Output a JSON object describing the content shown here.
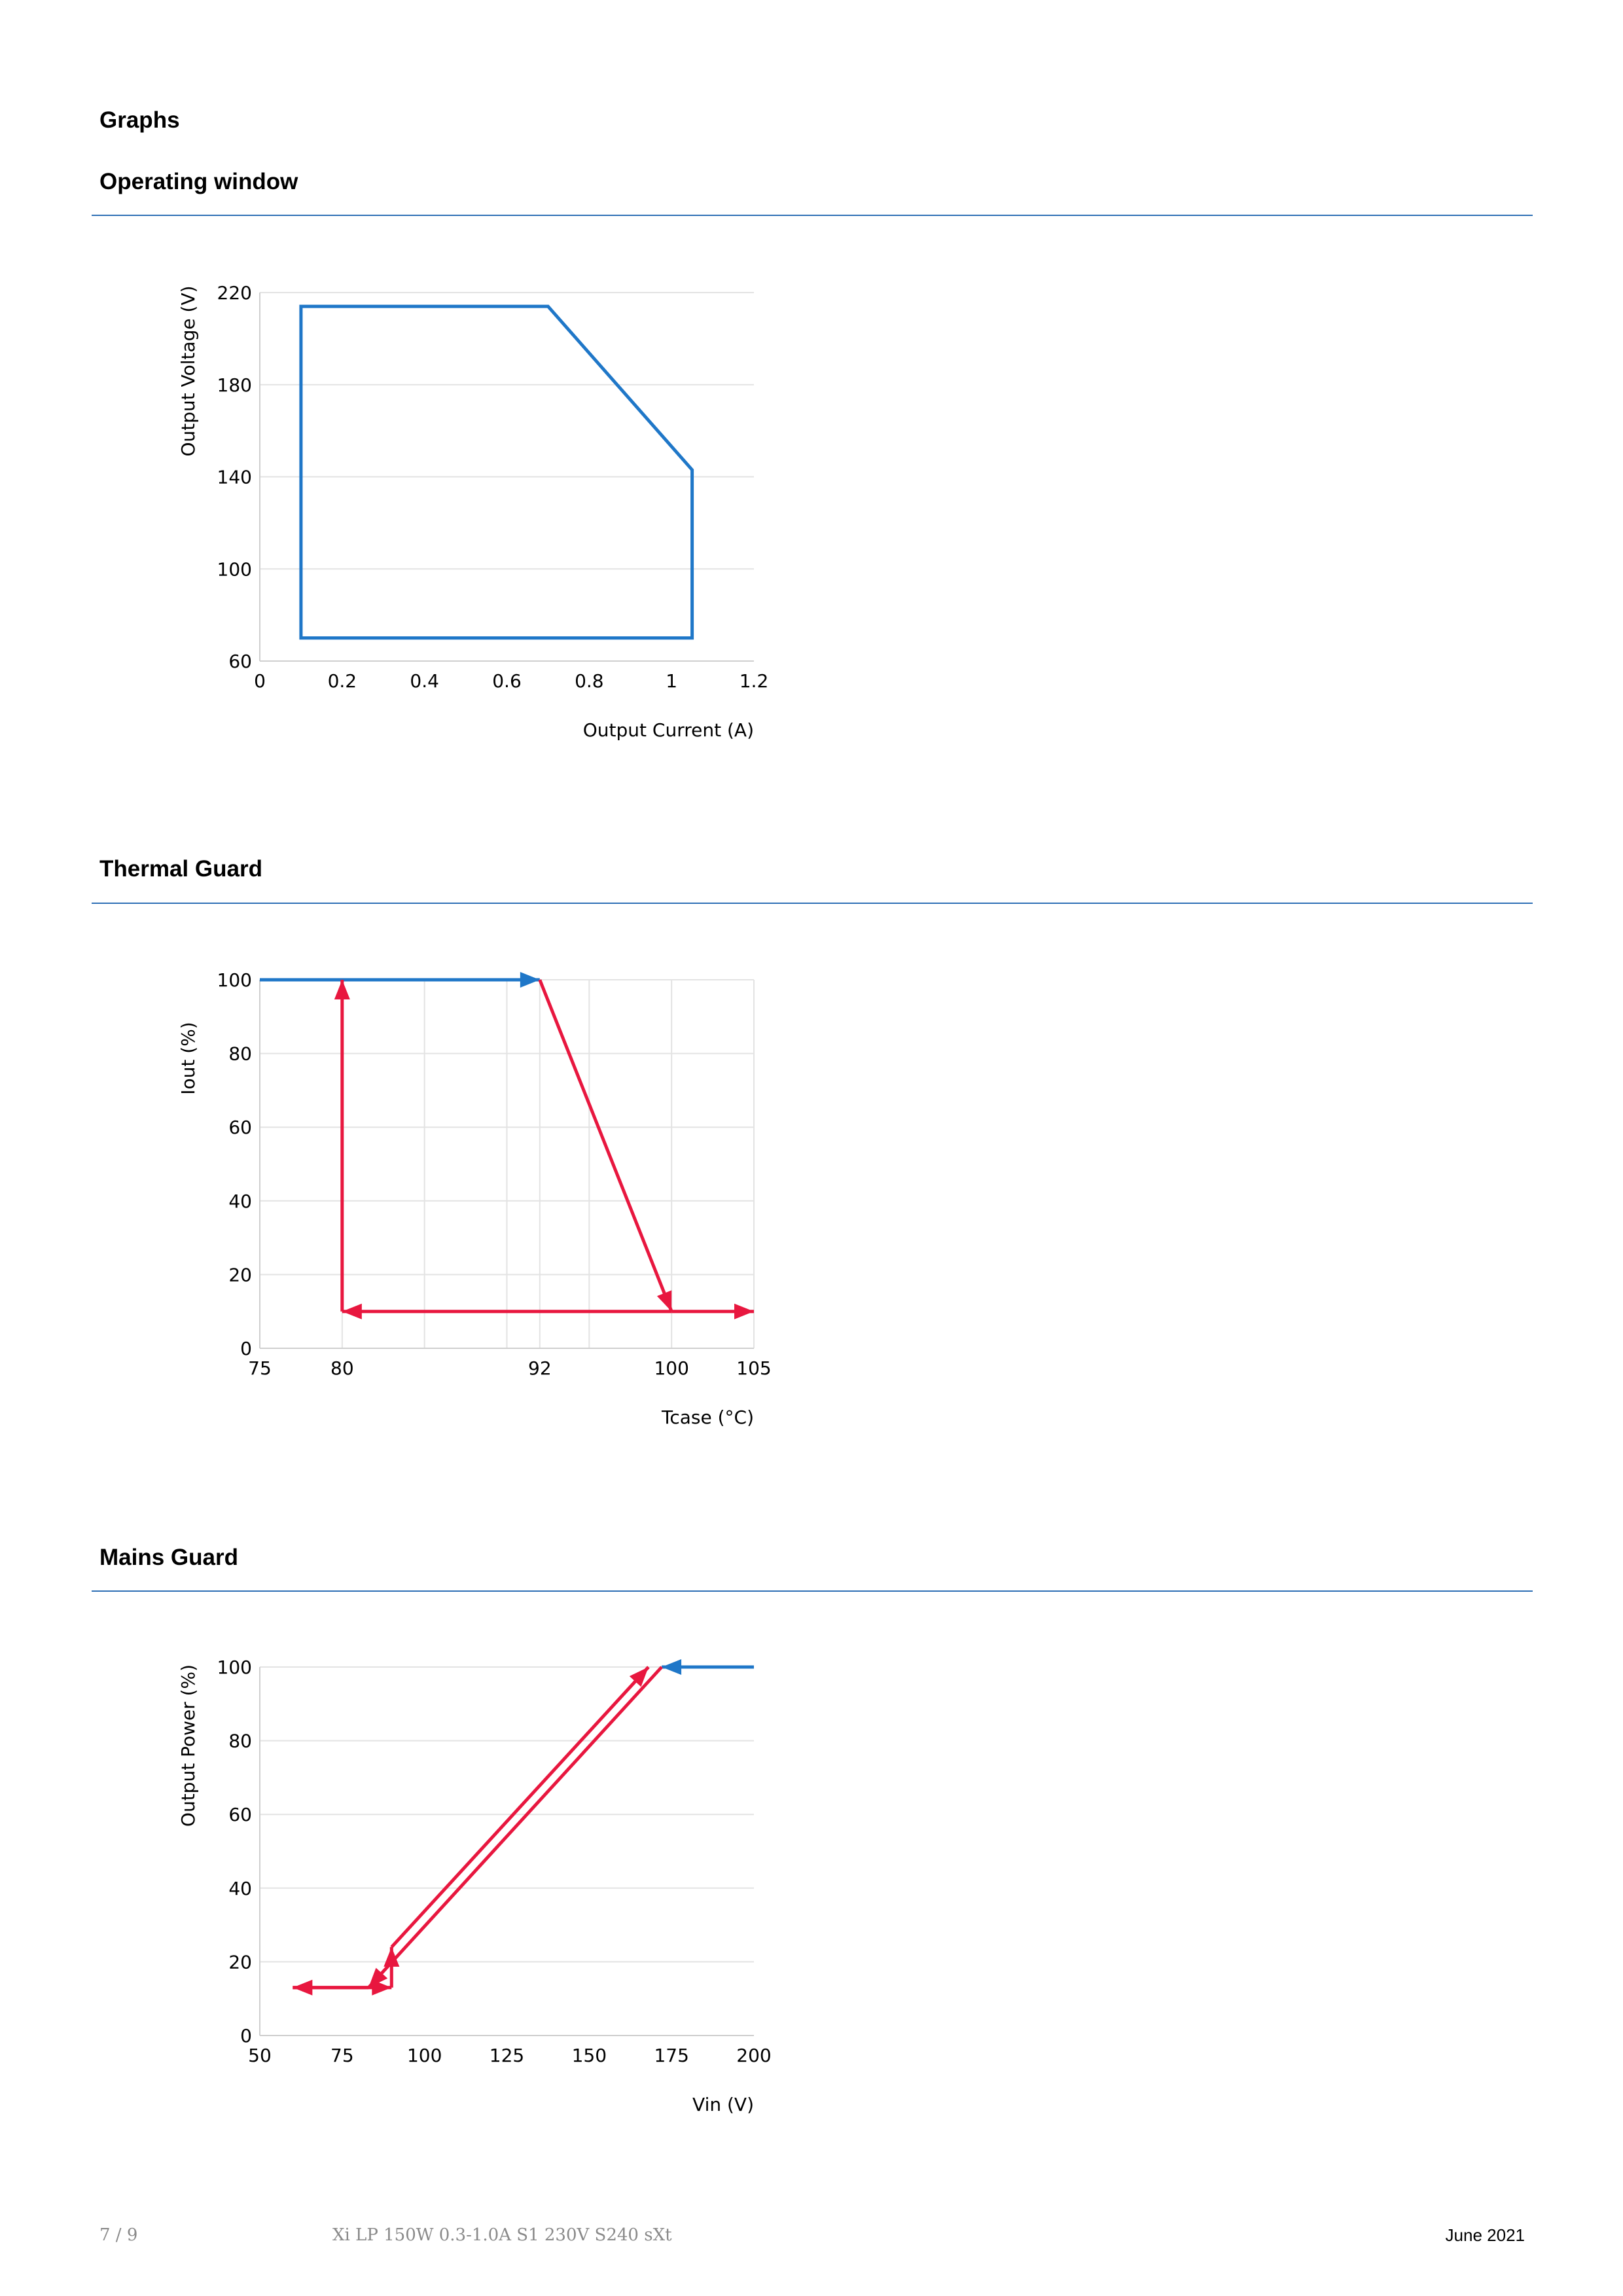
{
  "page": {
    "section_title": "Graphs",
    "footer": {
      "page_number": "7 / 9",
      "product_name": "Xi LP 150W 0.3-1.0A S1 230V S240 sXt",
      "date": "June 2021"
    }
  },
  "colors": {
    "rule": "#2e6fb5",
    "blue_line": "#1f77c8",
    "red_line": "#e8173f",
    "grid": "#e3e3e3"
  },
  "chart_data": [
    {
      "heading": "Operating window",
      "type": "line",
      "xlabel": "Output Current (A)",
      "ylabel": "Output Voltage (V)",
      "xlim": [
        0,
        1.2
      ],
      "ylim": [
        60,
        220
      ],
      "x_ticks": [
        0,
        0.2,
        0.4,
        0.6,
        0.8,
        1,
        1.2
      ],
      "x_tick_labels": [
        "0",
        "0.2",
        "0.4",
        "0.6",
        "0.8",
        "1",
        "1.2"
      ],
      "y_ticks": [
        60,
        100,
        140,
        180,
        220
      ],
      "y_tick_labels": [
        "60",
        "100",
        "140",
        "180",
        "220"
      ],
      "grid": "horizontal",
      "series": [
        {
          "color": "#1f77c8",
          "closed": true,
          "points": [
            [
              0.1,
              70
            ],
            [
              0.1,
              214
            ],
            [
              0.7,
              214
            ],
            [
              1.05,
              143
            ],
            [
              1.05,
              70
            ]
          ]
        }
      ]
    },
    {
      "heading": "Thermal Guard",
      "type": "line",
      "xlabel": "Tcase (°C)",
      "ylabel": "Iout (%)",
      "xlim": [
        75,
        105
      ],
      "ylim": [
        0,
        100
      ],
      "x_ticks": [
        75,
        80,
        92,
        100,
        105
      ],
      "x_tick_labels": [
        "75",
        "80",
        "92",
        "100",
        "105"
      ],
      "x_gridlines": [
        75,
        80,
        85,
        90,
        92,
        95,
        100,
        105
      ],
      "y_ticks": [
        0,
        20,
        40,
        60,
        80,
        100
      ],
      "y_tick_labels": [
        "0",
        "20",
        "40",
        "60",
        "80",
        "100"
      ],
      "grid": "both",
      "series": [
        {
          "color": "#1f77c8",
          "points": [
            [
              75,
              100
            ],
            [
              92,
              100
            ]
          ],
          "arrow_end": true
        },
        {
          "color": "#e8173f",
          "points": [
            [
              92,
              100
            ],
            [
              100,
              10
            ]
          ],
          "arrow_end": true
        },
        {
          "color": "#e8173f",
          "points": [
            [
              100,
              10
            ],
            [
              105,
              10
            ]
          ],
          "arrow_end": true
        },
        {
          "color": "#e8173f",
          "points": [
            [
              100,
              10
            ],
            [
              80,
              10
            ]
          ],
          "arrow_end": true
        },
        {
          "color": "#e8173f",
          "points": [
            [
              80,
              10
            ],
            [
              80,
              100
            ]
          ],
          "arrow_end": true
        }
      ]
    },
    {
      "heading": "Mains Guard",
      "type": "line",
      "xlabel": "Vin (V)",
      "ylabel": "Output Power (%)",
      "xlim": [
        50,
        200
      ],
      "ylim": [
        0,
        100
      ],
      "x_ticks": [
        50,
        75,
        100,
        125,
        150,
        175,
        200
      ],
      "x_tick_labels": [
        "50",
        "75",
        "100",
        "125",
        "150",
        "175",
        "200"
      ],
      "y_ticks": [
        0,
        20,
        40,
        60,
        80,
        100
      ],
      "y_tick_labels": [
        "0",
        "20",
        "40",
        "60",
        "80",
        "100"
      ],
      "grid": "horizontal",
      "series": [
        {
          "color": "#1f77c8",
          "points": [
            [
              200,
              100
            ],
            [
              172,
              100
            ]
          ],
          "arrow_end": true
        },
        {
          "color": "#e8173f",
          "points": [
            [
              172,
              100
            ],
            [
              83,
              13
            ]
          ],
          "arrow_end": true
        },
        {
          "color": "#e8173f",
          "points": [
            [
              83,
              13
            ],
            [
              60,
              13
            ]
          ],
          "arrow_end": true
        },
        {
          "color": "#e8173f",
          "points": [
            [
              60,
              13
            ],
            [
              90,
              13
            ]
          ],
          "arrow_end": true
        },
        {
          "color": "#e8173f",
          "points": [
            [
              90,
              13
            ],
            [
              90,
              24
            ]
          ],
          "arrow_end": true
        },
        {
          "color": "#e8173f",
          "points": [
            [
              90,
              24
            ],
            [
              168,
              100
            ]
          ],
          "arrow_end": true
        }
      ]
    }
  ]
}
